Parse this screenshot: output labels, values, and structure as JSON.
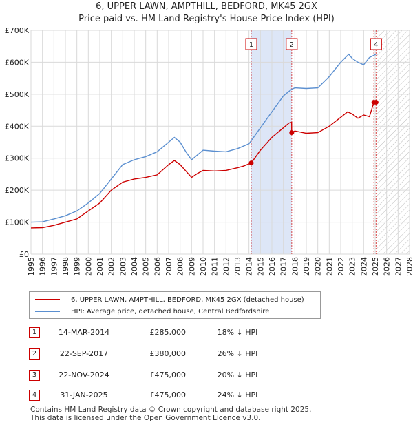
{
  "title_line1": "6, UPPER LAWN, AMPTHILL, BEDFORD, MK45 2GX",
  "title_line2": "Price paid vs. HM Land Registry's House Price Index (HPI)",
  "colors": {
    "property": "#cc0000",
    "hpi": "#5b8fd0",
    "band": "#dde6f7",
    "grid": "#d9d9d9",
    "marker": "#cc0000"
  },
  "chart_data": {
    "type": "line",
    "xlim": [
      1995,
      2028
    ],
    "ylim": [
      0,
      700000
    ],
    "xticks": [
      "1995",
      "1996",
      "1997",
      "1998",
      "1999",
      "2000",
      "2001",
      "2002",
      "2003",
      "2004",
      "2005",
      "2006",
      "2007",
      "2008",
      "2009",
      "2010",
      "2011",
      "2012",
      "2013",
      "2014",
      "2015",
      "2016",
      "2017",
      "2018",
      "2019",
      "2020",
      "2021",
      "2022",
      "2023",
      "2024",
      "2025",
      "2026",
      "2027",
      "2028"
    ],
    "yticks": [
      {
        "value": 0,
        "label": "£0"
      },
      {
        "value": 100000,
        "label": "£100K"
      },
      {
        "value": 200000,
        "label": "£200K"
      },
      {
        "value": 300000,
        "label": "£300K"
      },
      {
        "value": 400000,
        "label": "£400K"
      },
      {
        "value": 500000,
        "label": "£500K"
      },
      {
        "value": 600000,
        "label": "£600K"
      },
      {
        "value": 700000,
        "label": "£700K"
      }
    ],
    "shaded_range": [
      2014.2,
      2017.73
    ],
    "hatched_from": 2025.08,
    "series": [
      {
        "name": "6, UPPER LAWN, AMPTHILL, BEDFORD, MK45 2GX (detached house)",
        "color": "#cc0000",
        "points": [
          [
            1995,
            82000
          ],
          [
            1996,
            83000
          ],
          [
            1997,
            90000
          ],
          [
            1998,
            100000
          ],
          [
            1999,
            110000
          ],
          [
            2000,
            135000
          ],
          [
            2001,
            160000
          ],
          [
            2002,
            200000
          ],
          [
            2003,
            225000
          ],
          [
            2004,
            235000
          ],
          [
            2005,
            240000
          ],
          [
            2006,
            248000
          ],
          [
            2007,
            280000
          ],
          [
            2007.5,
            293000
          ],
          [
            2008,
            280000
          ],
          [
            2008.5,
            260000
          ],
          [
            2009,
            240000
          ],
          [
            2009.5,
            252000
          ],
          [
            2010,
            262000
          ],
          [
            2011,
            260000
          ],
          [
            2012,
            262000
          ],
          [
            2013,
            270000
          ],
          [
            2013.5,
            275000
          ],
          [
            2014.2,
            285000
          ],
          [
            2015,
            325000
          ],
          [
            2016,
            365000
          ],
          [
            2017,
            395000
          ],
          [
            2017.5,
            410000
          ],
          [
            2017.72,
            412000
          ],
          [
            2017.73,
            380000
          ],
          [
            2018,
            385000
          ],
          [
            2019,
            378000
          ],
          [
            2020,
            380000
          ],
          [
            2021,
            400000
          ],
          [
            2022,
            428000
          ],
          [
            2022.6,
            445000
          ],
          [
            2023,
            438000
          ],
          [
            2023.5,
            425000
          ],
          [
            2024,
            435000
          ],
          [
            2024.5,
            430000
          ],
          [
            2024.89,
            475000
          ],
          [
            2025.08,
            475000
          ]
        ]
      },
      {
        "name": "HPI: Average price, detached house, Central Bedfordshire",
        "color": "#5b8fd0",
        "points": [
          [
            1995,
            100000
          ],
          [
            1996,
            101000
          ],
          [
            1997,
            110000
          ],
          [
            1998,
            120000
          ],
          [
            1999,
            135000
          ],
          [
            2000,
            160000
          ],
          [
            2001,
            190000
          ],
          [
            2002,
            235000
          ],
          [
            2003,
            280000
          ],
          [
            2004,
            295000
          ],
          [
            2005,
            305000
          ],
          [
            2006,
            320000
          ],
          [
            2007,
            350000
          ],
          [
            2007.5,
            365000
          ],
          [
            2008,
            350000
          ],
          [
            2008.5,
            320000
          ],
          [
            2009,
            295000
          ],
          [
            2009.5,
            310000
          ],
          [
            2010,
            325000
          ],
          [
            2011,
            322000
          ],
          [
            2012,
            320000
          ],
          [
            2013,
            330000
          ],
          [
            2014,
            345000
          ],
          [
            2015,
            395000
          ],
          [
            2016,
            445000
          ],
          [
            2017,
            495000
          ],
          [
            2017.7,
            515000
          ],
          [
            2018,
            520000
          ],
          [
            2019,
            518000
          ],
          [
            2020,
            520000
          ],
          [
            2021,
            555000
          ],
          [
            2022,
            600000
          ],
          [
            2022.7,
            625000
          ],
          [
            2023,
            612000
          ],
          [
            2023.5,
            600000
          ],
          [
            2024,
            592000
          ],
          [
            2024.5,
            615000
          ],
          [
            2025.08,
            625000
          ]
        ]
      }
    ],
    "sale_markers": [
      {
        "label": "1",
        "x": 2014.2,
        "y": 285000
      },
      {
        "label": "2",
        "x": 2017.73,
        "y": 380000
      },
      {
        "label": "3",
        "x": 2024.89,
        "y": 475000
      },
      {
        "label": "4",
        "x": 2025.08,
        "y": 475000
      }
    ],
    "vline_labels": [
      {
        "label": "1",
        "x": 2014.2
      },
      {
        "label": "2",
        "x": 2017.73
      },
      {
        "label": "4",
        "x": 2025.08
      }
    ]
  },
  "legend": {
    "property": "6, UPPER LAWN, AMPTHILL, BEDFORD, MK45 2GX (detached house)",
    "hpi": "HPI: Average price, detached house, Central Bedfordshire"
  },
  "sales": [
    {
      "num": "1",
      "date": "14-MAR-2014",
      "price": "£285,000",
      "hpi": "18% ↓ HPI"
    },
    {
      "num": "2",
      "date": "22-SEP-2017",
      "price": "£380,000",
      "hpi": "26% ↓ HPI"
    },
    {
      "num": "3",
      "date": "22-NOV-2024",
      "price": "£475,000",
      "hpi": "20% ↓ HPI"
    },
    {
      "num": "4",
      "date": "31-JAN-2025",
      "price": "£475,000",
      "hpi": "24% ↓ HPI"
    }
  ],
  "footer": {
    "line1": "Contains HM Land Registry data © Crown copyright and database right 2025.",
    "line2": "This data is licensed under the Open Government Licence v3.0."
  }
}
